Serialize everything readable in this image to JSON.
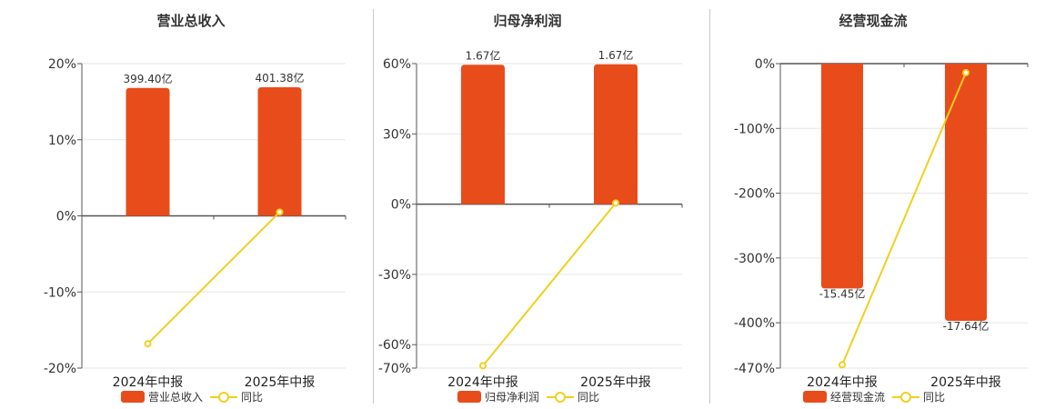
{
  "colors": {
    "bar": "#e84c1a",
    "line": "#f2cf1f",
    "axis": "#555555",
    "grid": "#e6e6e6"
  },
  "chart_data": [
    {
      "type": "bar",
      "title": "营业总收入",
      "categories": [
        "2024年中报",
        "2025年中报"
      ],
      "series": [
        {
          "name": "营业总收入",
          "type": "bar",
          "values": [
            16.8,
            16.9
          ],
          "labels": [
            "399.40亿",
            "401.38亿"
          ]
        },
        {
          "name": "同比",
          "type": "line",
          "values": [
            -16.8,
            0.5
          ]
        }
      ],
      "yticks": [
        "20%",
        "10%",
        "0%",
        "-10%",
        "-20%"
      ],
      "ylim": [
        -20,
        20
      ],
      "legend": "bottom"
    },
    {
      "type": "bar",
      "title": "归母净利润",
      "categories": [
        "2024年中报",
        "2025年中报"
      ],
      "series": [
        {
          "name": "归母净利润",
          "type": "bar",
          "values": [
            59.5,
            59.7
          ],
          "labels": [
            "1.67亿",
            "1.67亿"
          ]
        },
        {
          "name": "同比",
          "type": "line",
          "values": [
            -69.0,
            0.5
          ]
        }
      ],
      "yticks": [
        "60%",
        "30%",
        "0%",
        "-30%",
        "-60%",
        "-70%"
      ],
      "ylim": [
        -70,
        60
      ],
      "legend": "bottom"
    },
    {
      "type": "bar",
      "title": "经营现金流",
      "categories": [
        "2024年中报",
        "2025年中报"
      ],
      "series": [
        {
          "name": "经营现金流",
          "type": "bar",
          "values": [
            -347,
            -397
          ],
          "labels": [
            "-15.45亿",
            "-17.64亿"
          ]
        },
        {
          "name": "同比",
          "type": "line",
          "values": [
            -465,
            -14
          ]
        }
      ],
      "yticks": [
        "0%",
        "-100%",
        "-200%",
        "-300%",
        "-400%",
        "-470%"
      ],
      "ylim": [
        -470,
        0
      ],
      "legend": "bottom"
    }
  ]
}
